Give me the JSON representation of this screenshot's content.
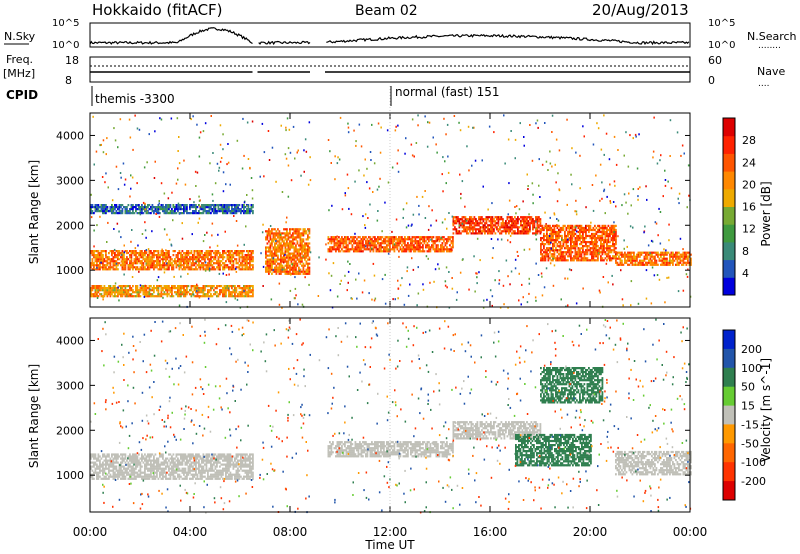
{
  "header": {
    "station": "Hokkaido (fitACF)",
    "beam": "Beam 02",
    "date": "20/Aug/2013"
  },
  "noise_panel": {
    "left_label": "N.Sky",
    "right_label": "N.Search",
    "left_ticks": [
      "10^5",
      "10^0"
    ],
    "right_ticks": [
      "10^5",
      "10^0"
    ],
    "right_legend": "........"
  },
  "freq_panel": {
    "left_label_1": "Freq.",
    "left_label_2": "[MHz]",
    "right_label": "Nave",
    "left_ticks": [
      "18",
      "8"
    ],
    "right_ticks": [
      "60",
      "0"
    ],
    "right_legend": "...."
  },
  "cpid": {
    "label": "CPID",
    "modes": [
      {
        "text": "themis -3300",
        "start_hour": 0
      },
      {
        "text": "normal (fast) 151",
        "start_hour": 12
      }
    ]
  },
  "x_axis": {
    "title": "Time UT",
    "ticks": [
      "00:00",
      "04:00",
      "08:00",
      "12:00",
      "16:00",
      "20:00",
      "00:00"
    ],
    "tick_hours": [
      0,
      4,
      8,
      12,
      16,
      20,
      24
    ]
  },
  "chart_data": [
    {
      "type": "heatmap",
      "name": "power",
      "ylabel": "Slant Range [km]",
      "yticks": [
        "4000",
        "3000",
        "2000",
        "1000"
      ],
      "ylim": [
        180,
        4500
      ],
      "xlim": [
        0,
        24
      ],
      "colorbar": {
        "label": "Power [dB]",
        "ticks": [
          "28",
          "24",
          "20",
          "16",
          "12",
          "8",
          "4"
        ],
        "tick_values": [
          28,
          24,
          20,
          16,
          12,
          8,
          4
        ],
        "range": [
          0,
          32
        ],
        "colors": [
          "#0000dd",
          "#2255bb",
          "#3a8a78",
          "#3f9a3f",
          "#77aa33",
          "#eeaa00",
          "#ff8800",
          "#ff5500",
          "#ff2200",
          "#dd0000"
        ]
      },
      "bands": [
        {
          "hours": [
            0,
            6.5
          ],
          "range_km": [
            1000,
            1450
          ],
          "power_db": 22
        },
        {
          "hours": [
            0,
            6.5
          ],
          "range_km": [
            400,
            650
          ],
          "power_db": 20
        },
        {
          "hours": [
            0,
            6.5
          ],
          "range_km": [
            2250,
            2450
          ],
          "power_db": 6
        },
        {
          "hours": [
            7.0,
            8.8
          ],
          "range_km": [
            900,
            1900
          ],
          "power_db": 22
        },
        {
          "hours": [
            9.5,
            14.5
          ],
          "range_km": [
            1400,
            1750
          ],
          "power_db": 24
        },
        {
          "hours": [
            14.5,
            18.0
          ],
          "range_km": [
            1800,
            2200
          ],
          "power_db": 26
        },
        {
          "hours": [
            18.0,
            21.0
          ],
          "range_km": [
            1200,
            2000
          ],
          "power_db": 24
        },
        {
          "hours": [
            21.0,
            24.0
          ],
          "range_km": [
            1100,
            1400
          ],
          "power_db": 22
        }
      ],
      "data_gaps_hours": [
        [
          6.5,
          6.7
        ],
        [
          8.8,
          9.1
        ],
        [
          9.15,
          9.4
        ]
      ]
    },
    {
      "type": "heatmap",
      "name": "velocity",
      "ylabel": "Slant Range [km]",
      "yticks": [
        "4000",
        "3000",
        "2000",
        "1000"
      ],
      "ylim": [
        180,
        4500
      ],
      "xlim": [
        0,
        24
      ],
      "colorbar": {
        "label": "Velocity [m s^-1]",
        "ticks": [
          "200",
          "100",
          "50",
          "15",
          "-15",
          "-50",
          "-100",
          "-200"
        ],
        "tick_values": [
          200,
          100,
          50,
          15,
          -15,
          -50,
          -100,
          -200
        ],
        "colors": [
          "#0022cc",
          "#2255aa",
          "#2f7f4f",
          "#66cc33",
          "#c0c0b8",
          "#ff9900",
          "#ff6600",
          "#ff3300",
          "#dd0000"
        ]
      },
      "bands": [
        {
          "hours": [
            0,
            6.5
          ],
          "range_km": [
            900,
            1450
          ],
          "velocity": 0
        },
        {
          "hours": [
            9.5,
            14.5
          ],
          "range_km": [
            1400,
            1750
          ],
          "velocity": 0
        },
        {
          "hours": [
            14.5,
            18.0
          ],
          "range_km": [
            1800,
            2200
          ],
          "velocity": 0
        },
        {
          "hours": [
            17.0,
            20.0
          ],
          "range_km": [
            1200,
            1900
          ],
          "velocity": 60
        },
        {
          "hours": [
            18.0,
            20.5
          ],
          "range_km": [
            2600,
            3400
          ],
          "velocity": 60
        },
        {
          "hours": [
            21.0,
            24.0
          ],
          "range_km": [
            1000,
            1500
          ],
          "velocity": 0
        }
      ]
    }
  ]
}
